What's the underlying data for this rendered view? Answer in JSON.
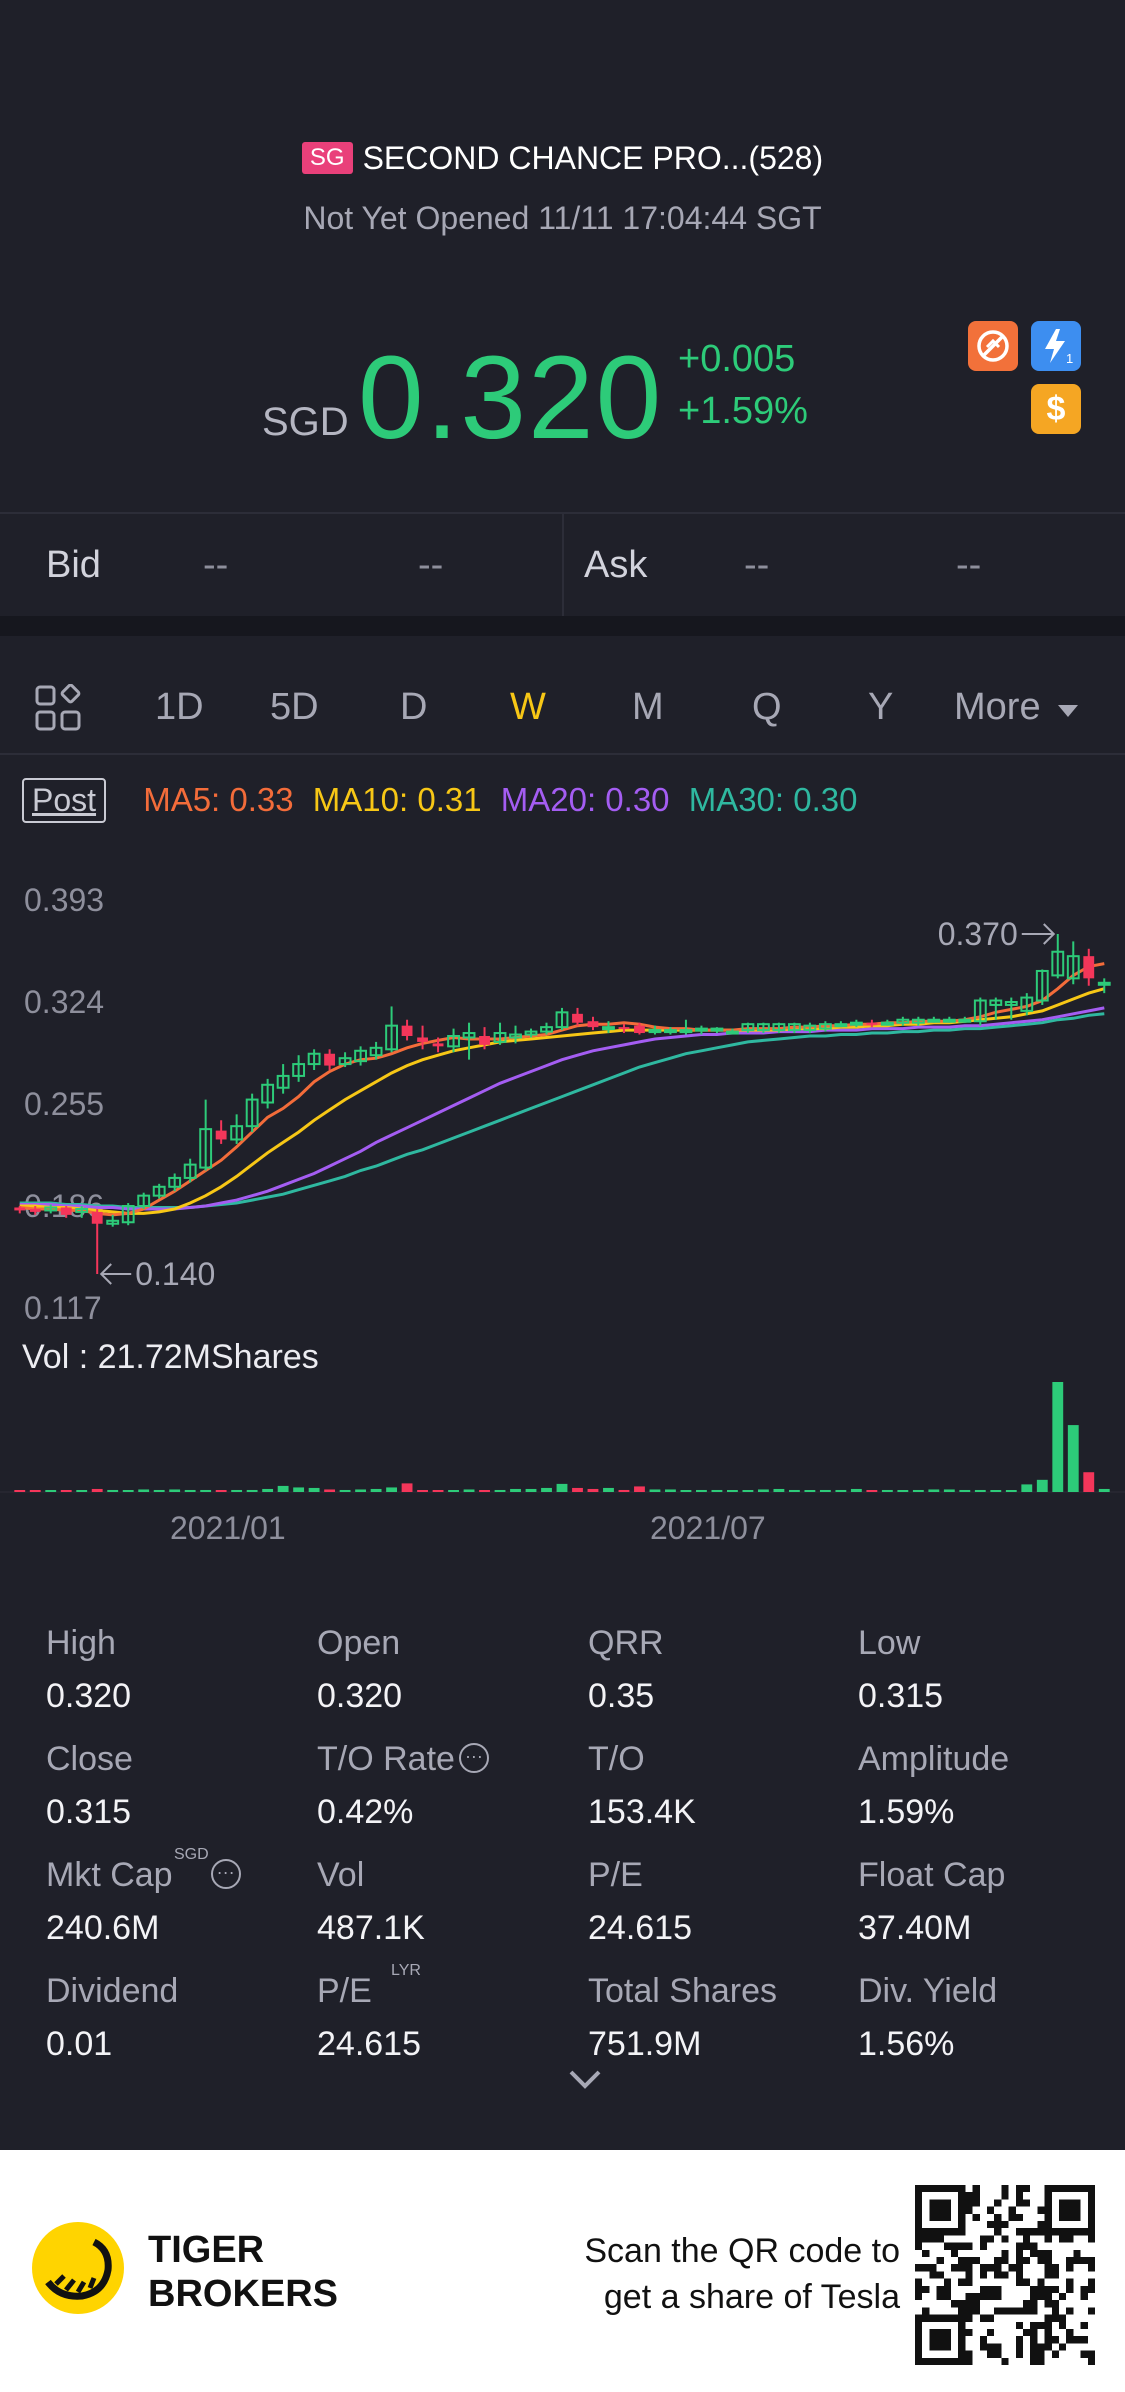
{
  "header": {
    "market_badge": "SG",
    "stock_name": "SECOND CHANCE PRO...(528)",
    "status": "Not Yet Opened 11/11 17:04:44 SGT",
    "currency": "SGD",
    "price": "0.320",
    "change": "+0.005",
    "change_pct": "+1.59%",
    "up_color": "#2dcb79"
  },
  "bidask": {
    "bid_label": "Bid",
    "bid_price": "--",
    "bid_size": "--",
    "ask_label": "Ask",
    "ask_price": "--",
    "ask_size": "--"
  },
  "periods": {
    "items": [
      "1D",
      "5D",
      "D",
      "W",
      "M",
      "Q",
      "Y"
    ],
    "active": "W",
    "more": "More"
  },
  "indicators": {
    "post": "Post",
    "ma5": "MA5: 0.33",
    "ma10": "MA10: 0.31",
    "ma20": "MA20: 0.30",
    "ma30": "MA30: 0.30",
    "ma5_color": "#f36c3a",
    "ma10_color": "#f7c716",
    "ma20_color": "#a45df2",
    "ma30_color": "#2fb8a0"
  },
  "chart_labels": {
    "y_ticks": [
      "0.393",
      "0.324",
      "0.255",
      "0.186",
      "0.117"
    ],
    "high_marker": "0.370",
    "low_marker": "0.140",
    "vol_label": "Vol  : 21.72MShares",
    "x_ticks": [
      "2021/01",
      "2021/07"
    ]
  },
  "chart_data": {
    "type": "candlestick",
    "ylim": [
      0.117,
      0.393
    ],
    "y_ticks": [
      0.393,
      0.324,
      0.255,
      0.186,
      0.117
    ],
    "x_ticks": [
      "2021/01",
      "2021/07"
    ],
    "candles": [
      {
        "o": 0.185,
        "c": 0.183,
        "h": 0.186,
        "l": 0.181
      },
      {
        "o": 0.184,
        "c": 0.182,
        "h": 0.186,
        "l": 0.18
      },
      {
        "o": 0.183,
        "c": 0.185,
        "h": 0.187,
        "l": 0.181
      },
      {
        "o": 0.185,
        "c": 0.18,
        "h": 0.186,
        "l": 0.178
      },
      {
        "o": 0.182,
        "c": 0.184,
        "h": 0.186,
        "l": 0.178
      },
      {
        "o": 0.182,
        "c": 0.174,
        "h": 0.184,
        "l": 0.14
      },
      {
        "o": 0.174,
        "c": 0.176,
        "h": 0.18,
        "l": 0.172
      },
      {
        "o": 0.175,
        "c": 0.186,
        "h": 0.188,
        "l": 0.173
      },
      {
        "o": 0.186,
        "c": 0.193,
        "h": 0.195,
        "l": 0.184
      },
      {
        "o": 0.193,
        "c": 0.199,
        "h": 0.201,
        "l": 0.191
      },
      {
        "o": 0.199,
        "c": 0.205,
        "h": 0.208,
        "l": 0.196
      },
      {
        "o": 0.205,
        "c": 0.214,
        "h": 0.218,
        "l": 0.202
      },
      {
        "o": 0.212,
        "c": 0.238,
        "h": 0.258,
        "l": 0.21
      },
      {
        "o": 0.237,
        "c": 0.231,
        "h": 0.244,
        "l": 0.228
      },
      {
        "o": 0.231,
        "c": 0.24,
        "h": 0.248,
        "l": 0.228
      },
      {
        "o": 0.24,
        "c": 0.258,
        "h": 0.262,
        "l": 0.236
      },
      {
        "o": 0.256,
        "c": 0.268,
        "h": 0.272,
        "l": 0.252
      },
      {
        "o": 0.266,
        "c": 0.274,
        "h": 0.282,
        "l": 0.262
      },
      {
        "o": 0.274,
        "c": 0.282,
        "h": 0.288,
        "l": 0.27
      },
      {
        "o": 0.282,
        "c": 0.289,
        "h": 0.292,
        "l": 0.278
      },
      {
        "o": 0.289,
        "c": 0.281,
        "h": 0.292,
        "l": 0.278
      },
      {
        "o": 0.282,
        "c": 0.286,
        "h": 0.29,
        "l": 0.28
      },
      {
        "o": 0.284,
        "c": 0.291,
        "h": 0.294,
        "l": 0.281
      },
      {
        "o": 0.288,
        "c": 0.293,
        "h": 0.297,
        "l": 0.285
      },
      {
        "o": 0.292,
        "c": 0.308,
        "h": 0.321,
        "l": 0.29
      },
      {
        "o": 0.308,
        "c": 0.301,
        "h": 0.312,
        "l": 0.298
      },
      {
        "o": 0.3,
        "c": 0.297,
        "h": 0.308,
        "l": 0.292
      },
      {
        "o": 0.296,
        "c": 0.294,
        "h": 0.3,
        "l": 0.29
      },
      {
        "o": 0.294,
        "c": 0.301,
        "h": 0.306,
        "l": 0.29
      },
      {
        "o": 0.3,
        "c": 0.303,
        "h": 0.31,
        "l": 0.285
      },
      {
        "o": 0.301,
        "c": 0.295,
        "h": 0.307,
        "l": 0.292
      },
      {
        "o": 0.297,
        "c": 0.303,
        "h": 0.31,
        "l": 0.295
      },
      {
        "o": 0.3,
        "c": 0.302,
        "h": 0.308,
        "l": 0.296
      },
      {
        "o": 0.302,
        "c": 0.304,
        "h": 0.306,
        "l": 0.3
      },
      {
        "o": 0.304,
        "c": 0.307,
        "h": 0.31,
        "l": 0.302
      },
      {
        "o": 0.307,
        "c": 0.317,
        "h": 0.32,
        "l": 0.305
      },
      {
        "o": 0.316,
        "c": 0.31,
        "h": 0.32,
        "l": 0.308
      },
      {
        "o": 0.311,
        "c": 0.307,
        "h": 0.314,
        "l": 0.305
      },
      {
        "o": 0.306,
        "c": 0.307,
        "h": 0.311,
        "l": 0.303
      },
      {
        "o": 0.307,
        "c": 0.306,
        "h": 0.309,
        "l": 0.303
      },
      {
        "o": 0.308,
        "c": 0.303,
        "h": 0.31,
        "l": 0.302
      },
      {
        "o": 0.305,
        "c": 0.305,
        "h": 0.308,
        "l": 0.302
      },
      {
        "o": 0.305,
        "c": 0.305,
        "h": 0.307,
        "l": 0.302
      },
      {
        "o": 0.305,
        "c": 0.305,
        "h": 0.312,
        "l": 0.302
      },
      {
        "o": 0.305,
        "c": 0.306,
        "h": 0.308,
        "l": 0.302
      },
      {
        "o": 0.305,
        "c": 0.306,
        "h": 0.307,
        "l": 0.303
      },
      {
        "o": 0.304,
        "c": 0.304,
        "h": 0.306,
        "l": 0.302
      },
      {
        "o": 0.305,
        "c": 0.309,
        "h": 0.31,
        "l": 0.303
      },
      {
        "o": 0.305,
        "c": 0.309,
        "h": 0.31,
        "l": 0.303
      },
      {
        "o": 0.305,
        "c": 0.309,
        "h": 0.31,
        "l": 0.303
      },
      {
        "o": 0.305,
        "c": 0.309,
        "h": 0.31,
        "l": 0.303
      },
      {
        "o": 0.305,
        "c": 0.308,
        "h": 0.31,
        "l": 0.303
      },
      {
        "o": 0.306,
        "c": 0.309,
        "h": 0.311,
        "l": 0.304
      },
      {
        "o": 0.309,
        "c": 0.309,
        "h": 0.311,
        "l": 0.307
      },
      {
        "o": 0.309,
        "c": 0.31,
        "h": 0.312,
        "l": 0.307
      },
      {
        "o": 0.31,
        "c": 0.309,
        "h": 0.312,
        "l": 0.307
      },
      {
        "o": 0.31,
        "c": 0.31,
        "h": 0.312,
        "l": 0.308
      },
      {
        "o": 0.31,
        "c": 0.312,
        "h": 0.314,
        "l": 0.308
      },
      {
        "o": 0.31,
        "c": 0.312,
        "h": 0.314,
        "l": 0.308
      },
      {
        "o": 0.312,
        "c": 0.312,
        "h": 0.314,
        "l": 0.31
      },
      {
        "o": 0.312,
        "c": 0.312,
        "h": 0.314,
        "l": 0.31
      },
      {
        "o": 0.312,
        "c": 0.312,
        "h": 0.314,
        "l": 0.31
      },
      {
        "o": 0.311,
        "c": 0.325,
        "h": 0.327,
        "l": 0.308
      },
      {
        "o": 0.322,
        "c": 0.325,
        "h": 0.327,
        "l": 0.312
      },
      {
        "o": 0.322,
        "c": 0.324,
        "h": 0.327,
        "l": 0.312
      },
      {
        "o": 0.318,
        "c": 0.327,
        "h": 0.33,
        "l": 0.315
      },
      {
        "o": 0.325,
        "c": 0.345,
        "h": 0.346,
        "l": 0.322
      },
      {
        "o": 0.342,
        "c": 0.358,
        "h": 0.37,
        "l": 0.34
      },
      {
        "o": 0.34,
        "c": 0.355,
        "h": 0.365,
        "l": 0.336
      },
      {
        "o": 0.355,
        "c": 0.34,
        "h": 0.36,
        "l": 0.335
      },
      {
        "o": 0.337,
        "c": 0.337,
        "h": 0.34,
        "l": 0.33
      }
    ],
    "ma5": [
      0.185,
      0.184,
      0.184,
      0.183,
      0.183,
      0.181,
      0.18,
      0.181,
      0.184,
      0.19,
      0.196,
      0.203,
      0.21,
      0.217,
      0.226,
      0.236,
      0.246,
      0.252,
      0.26,
      0.27,
      0.277,
      0.282,
      0.285,
      0.286,
      0.289,
      0.293,
      0.296,
      0.298,
      0.3,
      0.299,
      0.299,
      0.299,
      0.3,
      0.301,
      0.302,
      0.305,
      0.308,
      0.309,
      0.309,
      0.31,
      0.309,
      0.307,
      0.306,
      0.306,
      0.305,
      0.305,
      0.305,
      0.306,
      0.306,
      0.306,
      0.307,
      0.307,
      0.308,
      0.308,
      0.309,
      0.309,
      0.31,
      0.31,
      0.311,
      0.311,
      0.311,
      0.312,
      0.314,
      0.317,
      0.319,
      0.321,
      0.325,
      0.333,
      0.342,
      0.348,
      0.35
    ],
    "ma10": [
      0.186,
      0.186,
      0.185,
      0.185,
      0.184,
      0.183,
      0.182,
      0.181,
      0.181,
      0.182,
      0.184,
      0.188,
      0.193,
      0.199,
      0.206,
      0.214,
      0.222,
      0.229,
      0.236,
      0.244,
      0.251,
      0.258,
      0.264,
      0.27,
      0.276,
      0.281,
      0.285,
      0.288,
      0.291,
      0.293,
      0.295,
      0.297,
      0.298,
      0.299,
      0.3,
      0.301,
      0.302,
      0.303,
      0.304,
      0.305,
      0.305,
      0.305,
      0.305,
      0.305,
      0.305,
      0.305,
      0.305,
      0.305,
      0.305,
      0.305,
      0.306,
      0.306,
      0.306,
      0.307,
      0.307,
      0.308,
      0.308,
      0.309,
      0.309,
      0.31,
      0.31,
      0.311,
      0.312,
      0.313,
      0.314,
      0.316,
      0.318,
      0.322,
      0.326,
      0.33,
      0.333
    ],
    "ma20": [
      0.187,
      0.187,
      0.187,
      0.186,
      0.186,
      0.185,
      0.185,
      0.184,
      0.184,
      0.184,
      0.184,
      0.185,
      0.186,
      0.188,
      0.19,
      0.193,
      0.196,
      0.2,
      0.204,
      0.208,
      0.213,
      0.218,
      0.223,
      0.229,
      0.234,
      0.239,
      0.244,
      0.249,
      0.254,
      0.259,
      0.264,
      0.269,
      0.273,
      0.277,
      0.281,
      0.285,
      0.288,
      0.291,
      0.293,
      0.295,
      0.297,
      0.299,
      0.3,
      0.301,
      0.302,
      0.302,
      0.303,
      0.303,
      0.303,
      0.304,
      0.304,
      0.304,
      0.305,
      0.305,
      0.305,
      0.306,
      0.306,
      0.306,
      0.307,
      0.307,
      0.307,
      0.308,
      0.308,
      0.309,
      0.31,
      0.311,
      0.312,
      0.314,
      0.316,
      0.318,
      0.32
    ],
    "ma30": [
      0.188,
      0.188,
      0.188,
      0.187,
      0.187,
      0.186,
      0.186,
      0.185,
      0.185,
      0.185,
      0.185,
      0.185,
      0.186,
      0.187,
      0.188,
      0.19,
      0.192,
      0.194,
      0.197,
      0.2,
      0.203,
      0.206,
      0.21,
      0.213,
      0.217,
      0.221,
      0.224,
      0.228,
      0.232,
      0.236,
      0.24,
      0.244,
      0.248,
      0.252,
      0.256,
      0.26,
      0.264,
      0.268,
      0.272,
      0.276,
      0.28,
      0.283,
      0.286,
      0.289,
      0.291,
      0.293,
      0.295,
      0.297,
      0.298,
      0.299,
      0.3,
      0.301,
      0.301,
      0.302,
      0.302,
      0.303,
      0.303,
      0.304,
      0.304,
      0.305,
      0.305,
      0.306,
      0.306,
      0.307,
      0.308,
      0.309,
      0.31,
      0.312,
      0.313,
      0.315,
      0.316
    ],
    "volume_millions": [
      0.1,
      0.1,
      0.2,
      0.1,
      0.3,
      0.6,
      0.4,
      0.3,
      0.5,
      0.4,
      0.5,
      0.4,
      0.4,
      0.3,
      0.4,
      0.4,
      0.6,
      1.2,
      0.9,
      0.8,
      0.5,
      0.4,
      0.5,
      0.6,
      0.9,
      1.7,
      0.3,
      0.3,
      0.2,
      0.5,
      0.3,
      0.4,
      0.6,
      0.6,
      0.8,
      1.6,
      0.8,
      0.6,
      0.8,
      0.4,
      1.1,
      0.5,
      0.5,
      0.3,
      0.4,
      0.4,
      0.2,
      0.3,
      0.5,
      0.6,
      0.4,
      0.3,
      0.4,
      0.4,
      0.6,
      0.3,
      0.4,
      0.3,
      0.4,
      0.5,
      0.5,
      0.4,
      0.4,
      0.3,
      0.3,
      1.5,
      2.4,
      21.7,
      13.2,
      3.9,
      0.6
    ]
  },
  "stats": [
    {
      "label": "High",
      "value": "0.320"
    },
    {
      "label": "Open",
      "value": "0.320"
    },
    {
      "label": "QRR",
      "value": "0.35"
    },
    {
      "label": "Low",
      "value": "0.315"
    },
    {
      "label": "Close",
      "value": "0.315"
    },
    {
      "label": "T/O Rate",
      "value": "0.42%"
    },
    {
      "label": "T/O",
      "value": "153.4K"
    },
    {
      "label": "Amplitude",
      "value": "1.59%"
    },
    {
      "label": "Mkt Cap",
      "value": "240.6M",
      "sup": "SGD"
    },
    {
      "label": "Vol",
      "value": "487.1K"
    },
    {
      "label": "P/E",
      "value": "24.615"
    },
    {
      "label": "Float Cap",
      "value": "37.40M"
    },
    {
      "label": "Dividend",
      "value": "0.01"
    },
    {
      "label": "P/E",
      "value": "24.615",
      "sup": "LYR"
    },
    {
      "label": "Total Shares",
      "value": "751.9M"
    },
    {
      "label": "Div. Yield",
      "value": "1.56%"
    }
  ],
  "footer": {
    "brand_line1": "TIGER",
    "brand_line2": "BROKERS",
    "scan_line1": "Scan the QR code to",
    "scan_line2": "get a share of Tesla"
  }
}
